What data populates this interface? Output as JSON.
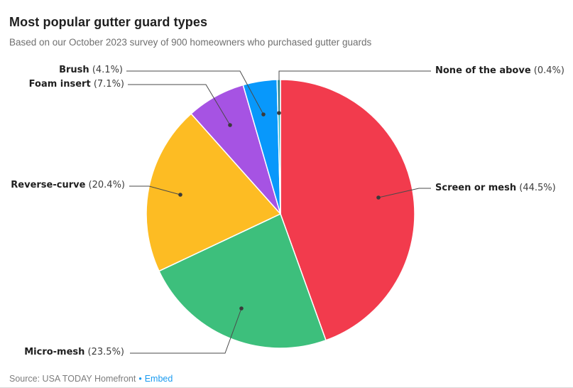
{
  "header": {
    "title": "Most popular gutter guard types",
    "subtitle": "Based on our October 2023 survey of 900 homeowners who purchased gutter guards"
  },
  "chart_data": {
    "type": "pie",
    "title": "Most popular gutter guard types",
    "subtitle": "Based on our October 2023 survey of 900 homeowners who purchased gutter guards",
    "unit": "%",
    "total": 100.0,
    "start_angle_deg": 0,
    "direction": "clockwise",
    "legend_position": "none",
    "label_style": "outside-callout",
    "slices": [
      {
        "label": "Screen or mesh",
        "value": 44.5,
        "color": "#f23b4d"
      },
      {
        "label": "Micro-mesh",
        "value": 23.5,
        "color": "#3dbf7c"
      },
      {
        "label": "Reverse-curve",
        "value": 20.4,
        "color": "#fdbc23"
      },
      {
        "label": "Foam insert",
        "value": 7.1,
        "color": "#a653e3"
      },
      {
        "label": "Brush",
        "value": 4.1,
        "color": "#0898fb"
      },
      {
        "label": "None of the above",
        "value": 0.4,
        "color": "#2eb4c4"
      }
    ]
  },
  "footer": {
    "source": "Source: USA TODAY Homefront",
    "separator": "•",
    "embed_label": "Embed"
  },
  "colors": {
    "title_text": "#1f1f1f",
    "subtitle_text": "#6f6f6f",
    "leader_line": "#4a4a4a",
    "link_blue": "#1a9bf0",
    "background": "#ffffff"
  }
}
